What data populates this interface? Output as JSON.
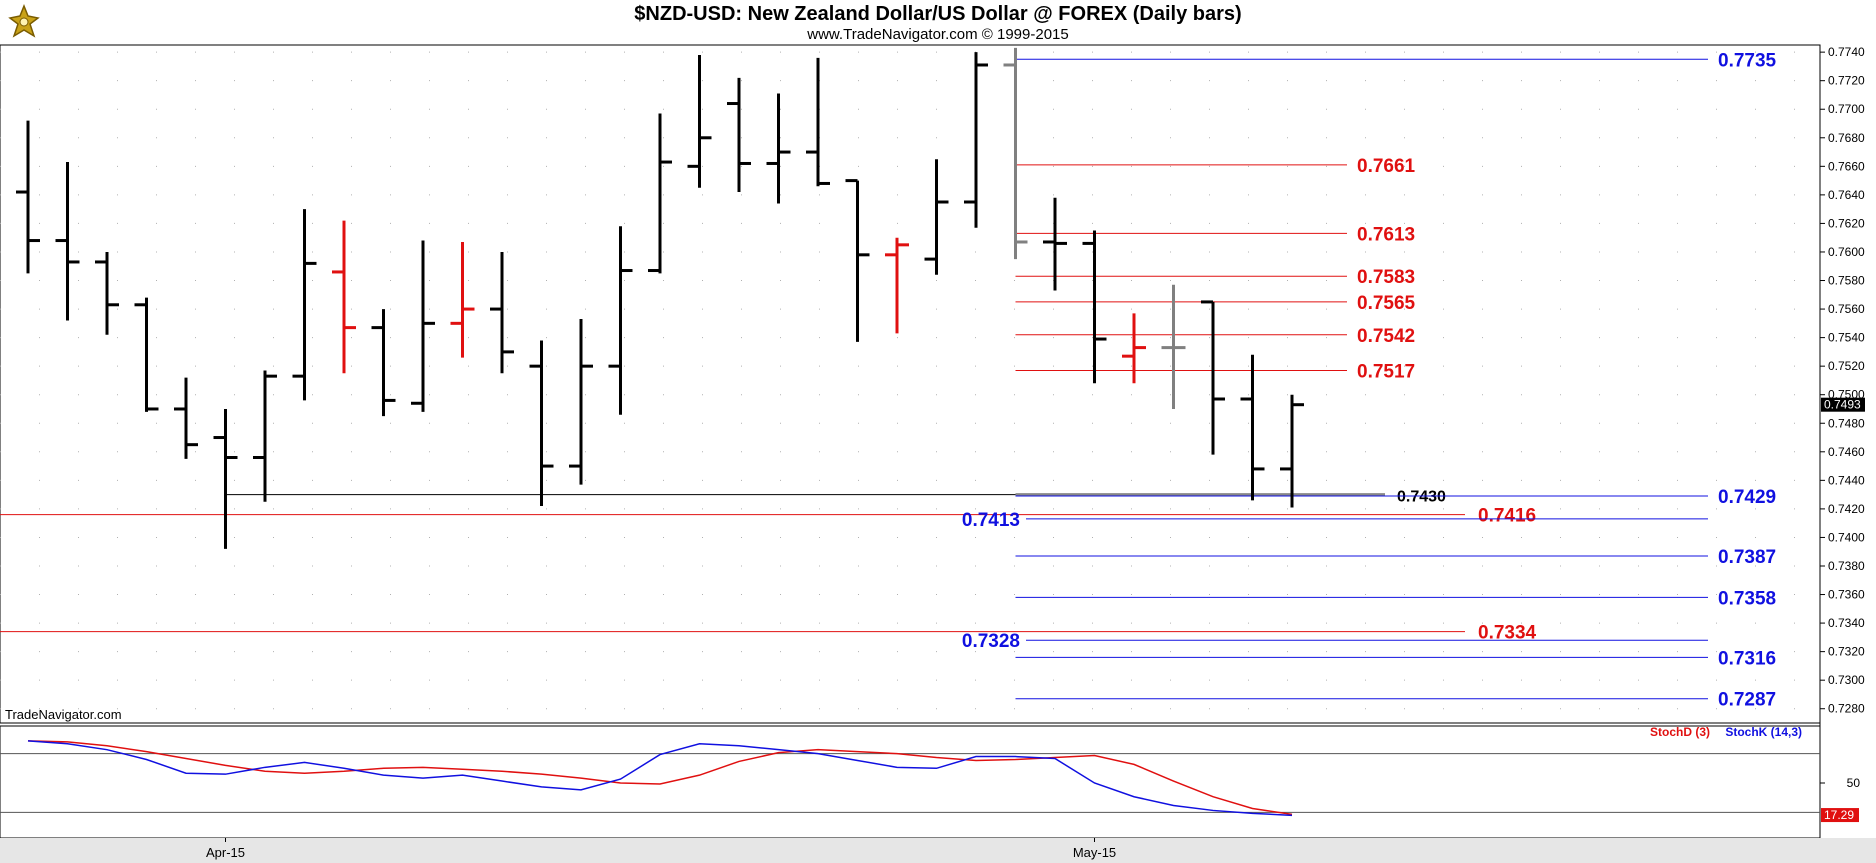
{
  "header": {
    "title": "$NZD-USD:  New Zealand Dollar/US Dollar @ FOREX  (Daily bars)",
    "subtitle": "www.TradeNavigator.com © 1999-2015"
  },
  "watermark": "TradeNavigator.com",
  "colors": {
    "bar_up": "#000000",
    "bar_red": "#e01010",
    "bar_gray": "#808080",
    "level_red": "#e01010",
    "level_blue": "#1010e0",
    "stoch_d": "#e01010",
    "stoch_k": "#1010e0",
    "last_price_bg": "#000000",
    "stoch_value_bg": "#e01010"
  },
  "chart_data": [
    {
      "type": "ohlc",
      "ylim": [
        0.727,
        0.7745
      ],
      "y_ticks": [
        "0.7280",
        "0.7300",
        "0.7320",
        "0.7340",
        "0.7360",
        "0.7380",
        "0.7400",
        "0.7420",
        "0.7440",
        "0.7460",
        "0.7480",
        "0.7500",
        "0.7520",
        "0.7540",
        "0.7560",
        "0.7580",
        "0.7600",
        "0.7620",
        "0.7640",
        "0.7660",
        "0.7680",
        "0.7700",
        "0.7720",
        "0.7740"
      ],
      "x_labels": [
        {
          "label": "Apr-15",
          "bar_index": 5
        },
        {
          "label": "May-15",
          "bar_index": 27
        }
      ],
      "last_price": "0.7493",
      "bars": [
        {
          "o": 0.7642,
          "h": 0.7692,
          "l": 0.7585,
          "c": 0.7608,
          "color": "black"
        },
        {
          "o": 0.7608,
          "h": 0.7663,
          "l": 0.7552,
          "c": 0.7593,
          "color": "black"
        },
        {
          "o": 0.7593,
          "h": 0.76,
          "l": 0.7542,
          "c": 0.7563,
          "color": "black"
        },
        {
          "o": 0.7563,
          "h": 0.7568,
          "l": 0.7488,
          "c": 0.749,
          "color": "black"
        },
        {
          "o": 0.749,
          "h": 0.7512,
          "l": 0.7455,
          "c": 0.7465,
          "color": "black"
        },
        {
          "o": 0.747,
          "h": 0.749,
          "l": 0.7392,
          "c": 0.7456,
          "color": "black"
        },
        {
          "o": 0.7456,
          "h": 0.7517,
          "l": 0.7425,
          "c": 0.7513,
          "color": "black"
        },
        {
          "o": 0.7513,
          "h": 0.763,
          "l": 0.7496,
          "c": 0.7592,
          "color": "black"
        },
        {
          "o": 0.7586,
          "h": 0.7622,
          "l": 0.7515,
          "c": 0.7547,
          "color": "red"
        },
        {
          "o": 0.7547,
          "h": 0.756,
          "l": 0.7485,
          "c": 0.7496,
          "color": "black"
        },
        {
          "o": 0.7494,
          "h": 0.7608,
          "l": 0.7488,
          "c": 0.755,
          "color": "black"
        },
        {
          "o": 0.755,
          "h": 0.7607,
          "l": 0.7526,
          "c": 0.756,
          "color": "red"
        },
        {
          "o": 0.756,
          "h": 0.76,
          "l": 0.7515,
          "c": 0.753,
          "color": "black"
        },
        {
          "o": 0.752,
          "h": 0.7538,
          "l": 0.7422,
          "c": 0.745,
          "color": "black"
        },
        {
          "o": 0.745,
          "h": 0.7553,
          "l": 0.7437,
          "c": 0.752,
          "color": "black"
        },
        {
          "o": 0.752,
          "h": 0.7618,
          "l": 0.7486,
          "c": 0.7587,
          "color": "black"
        },
        {
          "o": 0.7587,
          "h": 0.7697,
          "l": 0.7585,
          "c": 0.7663,
          "color": "black"
        },
        {
          "o": 0.766,
          "h": 0.7738,
          "l": 0.7645,
          "c": 0.768,
          "color": "black"
        },
        {
          "o": 0.7704,
          "h": 0.7722,
          "l": 0.7642,
          "c": 0.7662,
          "color": "black"
        },
        {
          "o": 0.7662,
          "h": 0.7711,
          "l": 0.7634,
          "c": 0.767,
          "color": "black"
        },
        {
          "o": 0.767,
          "h": 0.7736,
          "l": 0.7646,
          "c": 0.7648,
          "color": "black"
        },
        {
          "o": 0.765,
          "h": 0.765,
          "l": 0.7537,
          "c": 0.7598,
          "color": "black"
        },
        {
          "o": 0.7598,
          "h": 0.761,
          "l": 0.7543,
          "c": 0.7605,
          "color": "red"
        },
        {
          "o": 0.7595,
          "h": 0.7665,
          "l": 0.7584,
          "c": 0.7635,
          "color": "black"
        },
        {
          "o": 0.7635,
          "h": 0.774,
          "l": 0.7617,
          "c": 0.7731,
          "color": "black"
        },
        {
          "o": 0.7731,
          "h": 0.7743,
          "l": 0.7595,
          "c": 0.7607,
          "color": "gray"
        },
        {
          "o": 0.7607,
          "h": 0.7638,
          "l": 0.7573,
          "c": 0.7606,
          "color": "black"
        },
        {
          "o": 0.7606,
          "h": 0.7615,
          "l": 0.7508,
          "c": 0.7539,
          "color": "black"
        },
        {
          "o": 0.7527,
          "h": 0.7557,
          "l": 0.7508,
          "c": 0.7533,
          "color": "red"
        },
        {
          "o": 0.7533,
          "h": 0.7577,
          "l": 0.749,
          "c": 0.7533,
          "color": "gray"
        },
        {
          "o": 0.7565,
          "h": 0.7565,
          "l": 0.7458,
          "c": 0.7497,
          "color": "black"
        },
        {
          "o": 0.7497,
          "h": 0.7528,
          "l": 0.7426,
          "c": 0.7448,
          "color": "black"
        },
        {
          "o": 0.7448,
          "h": 0.75,
          "l": 0.7421,
          "c": 0.7493,
          "color": "black"
        }
      ],
      "levels": [
        {
          "value": 0.7735,
          "label": "0.7735",
          "color": "blue",
          "x_from_bar": 25,
          "label_pos": "right"
        },
        {
          "value": 0.7661,
          "label": "0.7661",
          "color": "red",
          "x_from_bar": 25,
          "label_pos": "mid"
        },
        {
          "value": 0.7613,
          "label": "0.7613",
          "color": "red",
          "x_from_bar": 25,
          "label_pos": "mid"
        },
        {
          "value": 0.7583,
          "label": "0.7583",
          "color": "red",
          "x_from_bar": 25,
          "label_pos": "mid"
        },
        {
          "value": 0.7565,
          "label": "0.7565",
          "color": "red",
          "x_from_bar": 25,
          "label_pos": "mid"
        },
        {
          "value": 0.7542,
          "label": "0.7542",
          "color": "red",
          "x_from_bar": 25,
          "label_pos": "mid"
        },
        {
          "value": 0.7517,
          "label": "0.7517",
          "color": "red",
          "x_from_bar": 25,
          "label_pos": "mid"
        },
        {
          "value": 0.743,
          "label": "0.7430",
          "color": "black",
          "x_from_bar": 5,
          "label_pos": "near"
        },
        {
          "value": 0.7429,
          "label": "0.7429",
          "color": "blue",
          "x_from_bar": 25,
          "label_pos": "right"
        },
        {
          "value": 0.7416,
          "label": "0.7416",
          "color": "red",
          "x_from_bar": -1,
          "label_pos": "mid2"
        },
        {
          "value": 0.7413,
          "label": "0.7413",
          "color": "blue",
          "x_from_bar": 25,
          "label_pos": "left"
        },
        {
          "value": 0.7387,
          "label": "0.7387",
          "color": "blue",
          "x_from_bar": 25,
          "label_pos": "right"
        },
        {
          "value": 0.7358,
          "label": "0.7358",
          "color": "blue",
          "x_from_bar": 25,
          "label_pos": "right"
        },
        {
          "value": 0.7334,
          "label": "0.7334",
          "color": "red",
          "x_from_bar": -1,
          "label_pos": "mid2"
        },
        {
          "value": 0.7328,
          "label": "0.7328",
          "color": "blue",
          "x_from_bar": 25,
          "label_pos": "left"
        },
        {
          "value": 0.7316,
          "label": "0.7316",
          "color": "blue",
          "x_from_bar": 25,
          "label_pos": "right"
        },
        {
          "value": 0.7287,
          "label": "0.7287",
          "color": "blue",
          "x_from_bar": 25,
          "label_pos": "right"
        }
      ]
    },
    {
      "type": "line",
      "ylim": [
        0,
        100
      ],
      "y_ticks": [
        "50"
      ],
      "legend": [
        "StochD (3)",
        "StochK (14,3)"
      ],
      "last_value": "17.29",
      "series": [
        {
          "name": "StochD (3)",
          "color": "red",
          "values": [
            93,
            92,
            88,
            82,
            75,
            68,
            62,
            60,
            62,
            65,
            66,
            64,
            62,
            59,
            55,
            50,
            49,
            58,
            72,
            81,
            84,
            82,
            80,
            76,
            73,
            74,
            76,
            78,
            69,
            52,
            36,
            24,
            18
          ]
        },
        {
          "name": "StochK (14,3)",
          "color": "blue",
          "values": [
            93,
            90,
            84,
            74,
            60,
            59,
            66,
            71,
            65,
            58,
            55,
            58,
            52,
            46,
            43,
            54,
            79,
            90,
            88,
            84,
            80,
            73,
            66,
            65,
            77,
            77,
            75,
            50,
            36,
            27,
            22,
            19,
            17
          ]
        }
      ]
    }
  ]
}
